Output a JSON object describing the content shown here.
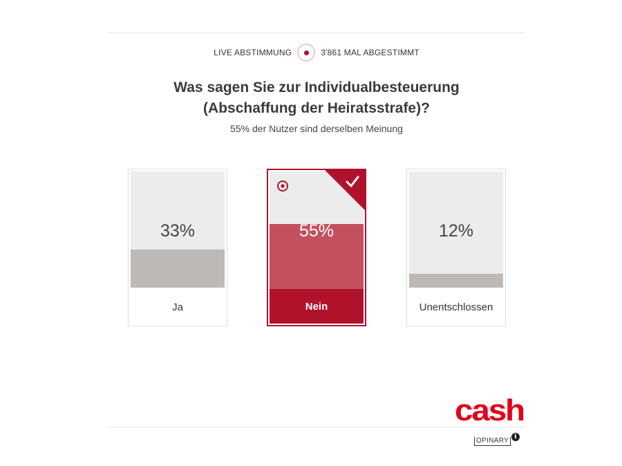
{
  "header": {
    "live_label": "LIVE ABSTIMMUNG",
    "vote_count_label": "3'861 MAL ABGESTIMMT"
  },
  "question": {
    "line1": "Was sagen Sie zur Individualbesteuerung",
    "line2": "(Abschaffung der Heiratsstrafe)?",
    "subtitle": "55% der Nutzer sind derselben Meinung"
  },
  "options": [
    {
      "label": "Ja",
      "percent_text": "33%",
      "share": 0.33,
      "selected": false
    },
    {
      "label": "Nein",
      "percent_text": "55%",
      "share": 0.55,
      "selected": true
    },
    {
      "label": "Unentschlossen",
      "percent_text": "12%",
      "share": 0.12,
      "selected": false
    }
  ],
  "footer": {
    "brand": "cash",
    "provider": "OPINARY",
    "info_glyph": "i"
  },
  "colors": {
    "accent": "#b0122c",
    "selected_fill": "#c4505f",
    "bar_fill": "#bdb9b6",
    "bar_bg": "#ececec",
    "brand_red": "#e2001a"
  },
  "icons": {
    "live": "live-record-icon",
    "selected_target": "target-icon",
    "checkmark": "checkmark-icon",
    "info": "info-icon"
  }
}
